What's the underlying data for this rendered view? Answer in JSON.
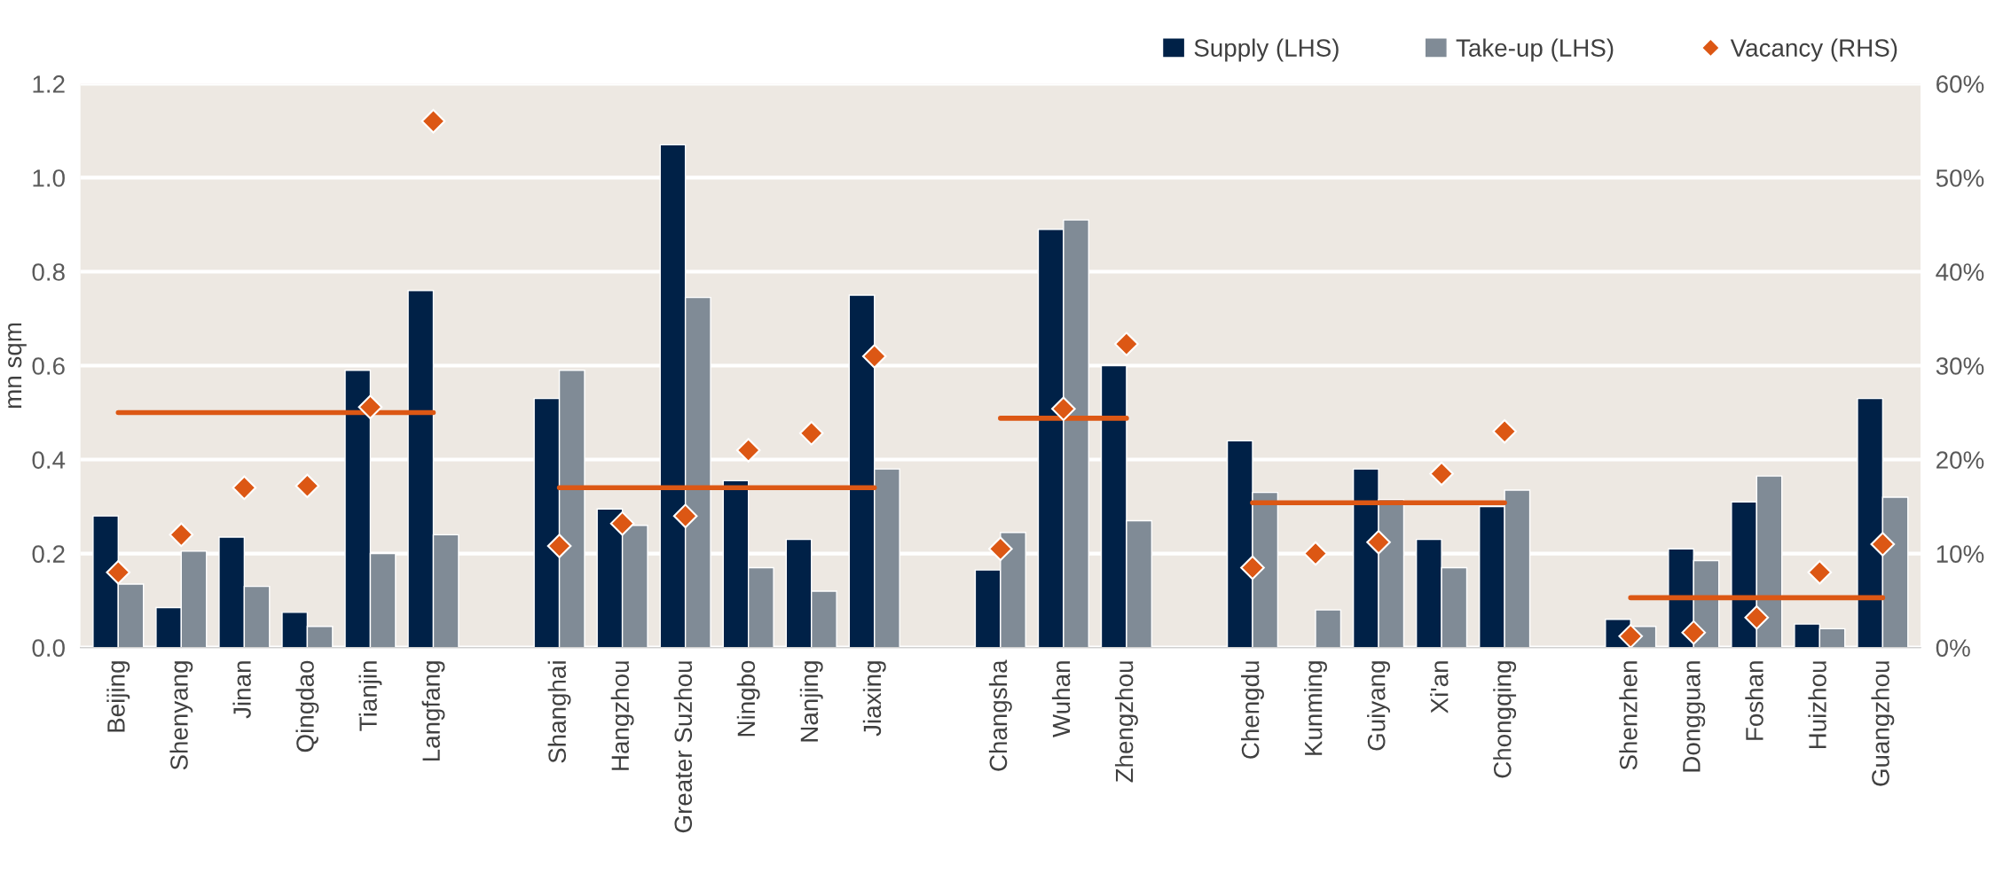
{
  "chart_data": {
    "type": "bar",
    "categories": [
      "Beijing",
      "Shenyang",
      "Jinan",
      "Qingdao",
      "Tianjin",
      "Langfang",
      null,
      "Shanghai",
      "Hangzhou",
      "Greater Suzhou",
      "Ningbo",
      "Nanjing",
      "Jiaxing",
      null,
      "Changsha",
      "Wuhan",
      "Zhengzhou",
      null,
      "Chengdu",
      "Kunming",
      "Guiyang",
      "Xi'an",
      "Chongqing",
      null,
      "Shenzhen",
      "Dongguan",
      "Foshan",
      "Huizhou",
      "Guangzhou"
    ],
    "series": [
      {
        "name": "Supply (LHS)",
        "color": "#002147",
        "values": [
          0.28,
          0.085,
          0.235,
          0.075,
          0.59,
          0.76,
          null,
          0.53,
          0.295,
          1.07,
          0.355,
          0.23,
          0.75,
          null,
          0.165,
          0.89,
          0.6,
          null,
          0.44,
          null,
          0.38,
          0.23,
          0.3,
          null,
          0.06,
          0.21,
          0.31,
          0.05,
          0.53
        ]
      },
      {
        "name": "Take-up (LHS)",
        "color": "#808b96",
        "values": [
          0.135,
          0.205,
          0.13,
          0.045,
          0.2,
          0.24,
          null,
          0.59,
          0.26,
          0.745,
          0.17,
          0.12,
          0.38,
          null,
          0.245,
          0.91,
          0.27,
          null,
          0.33,
          0.08,
          0.315,
          0.17,
          0.335,
          null,
          0.045,
          0.185,
          0.365,
          0.04,
          0.32
        ]
      },
      {
        "name": "Vacancy (RHS)",
        "type": "scatter",
        "axis": "y2",
        "marker": "diamond",
        "color": "#dc5714",
        "values": [
          8,
          12,
          17,
          17.2,
          25.6,
          56,
          null,
          10.8,
          13.2,
          14,
          21,
          22.8,
          31,
          null,
          10.5,
          25.4,
          32.3,
          null,
          8.5,
          10,
          11.2,
          18.5,
          23,
          null,
          1.2,
          1.6,
          3.2,
          8,
          11
        ]
      },
      {
        "type": "line",
        "axis": "y2",
        "marker": "none",
        "line_style": "solid",
        "color": "#dc5714",
        "values": [
          25,
          25,
          25,
          25,
          25,
          25,
          null,
          17,
          17,
          17,
          17,
          17,
          17,
          null,
          24.4,
          24.4,
          24.4,
          null,
          15.4,
          15.4,
          15.4,
          15.4,
          15.4,
          null,
          5.3,
          5.3,
          5.3,
          5.3,
          5.3
        ]
      }
    ],
    "ylabel": "mn sqm",
    "ylim": [
      0,
      1.2
    ],
    "yticks": [
      {
        "value": 0,
        "label": "0.0"
      },
      0.2,
      0.4,
      0.6,
      0.8,
      {
        "value": 1,
        "label": "1.0"
      },
      1.2
    ],
    "y2lim": [
      0,
      60
    ],
    "y2ticks": [
      {
        "value": 0,
        "label": "0%"
      },
      {
        "value": 10,
        "label": "10%"
      },
      {
        "value": 20,
        "label": "20%"
      },
      {
        "value": 30,
        "label": "30%"
      },
      {
        "value": 40,
        "label": "40%"
      },
      {
        "value": 50,
        "label": "50%"
      },
      {
        "value": 60,
        "label": "60%"
      }
    ],
    "grid": "y",
    "legend": "top right"
  }
}
